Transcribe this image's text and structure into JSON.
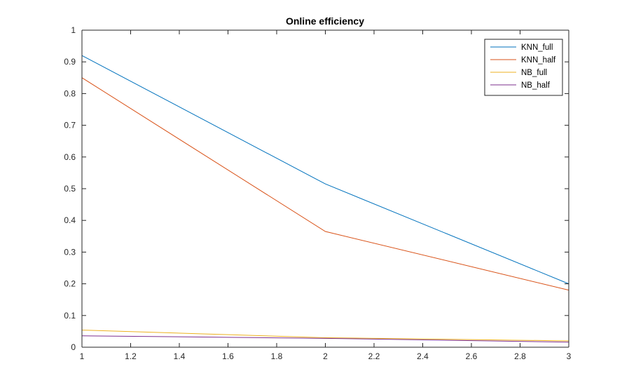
{
  "chart_data": {
    "type": "line",
    "title": "Online efficiency",
    "xlabel": "",
    "ylabel": "",
    "xlim": [
      1,
      3
    ],
    "ylim": [
      0,
      1
    ],
    "xticks": [
      "1",
      "1.2",
      "1.4",
      "1.6",
      "1.8",
      "2",
      "2.2",
      "2.4",
      "2.6",
      "2.8",
      "3"
    ],
    "yticks": [
      "0",
      "0.1",
      "0.2",
      "0.3",
      "0.4",
      "0.5",
      "0.6",
      "0.7",
      "0.8",
      "0.9",
      "1"
    ],
    "grid": false,
    "legend_position": "top-right",
    "x": [
      1,
      2,
      3
    ],
    "series": [
      {
        "name": "KNN_full",
        "color": "#0072BD",
        "values": [
          0.92,
          0.515,
          0.2
        ]
      },
      {
        "name": "KNN_half",
        "color": "#D95319",
        "values": [
          0.85,
          0.365,
          0.18
        ]
      },
      {
        "name": "NB_full",
        "color": "#EDB120",
        "values": [
          0.054,
          0.03,
          0.02
        ]
      },
      {
        "name": "NB_half",
        "color": "#7E2F8E",
        "values": [
          0.036,
          0.028,
          0.016
        ]
      }
    ]
  }
}
